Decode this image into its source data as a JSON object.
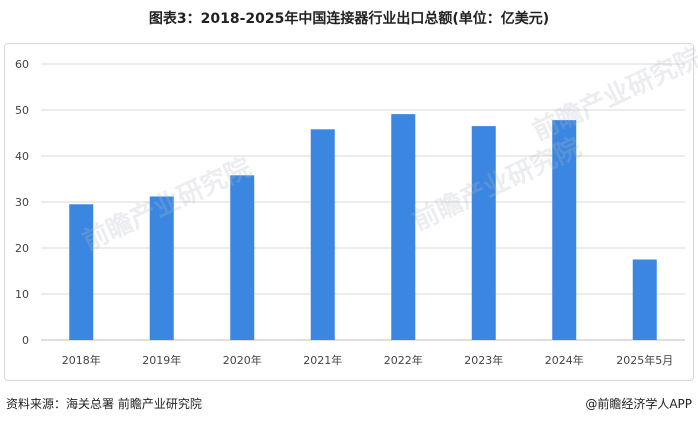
{
  "title": "图表3：2018-2025年中国连接器行业出口总额(单位：亿美元)",
  "footer": {
    "source_label": "资料来源：",
    "source_text": "海关总署 前瞻产业研究院",
    "credit": "@前瞻经济学人APP"
  },
  "watermark": "前瞻产业研究院",
  "colors": {
    "bar": "#3a86e0",
    "grid": "#d9d9d9",
    "axis": "#bfbfbf"
  },
  "chart_data": {
    "type": "bar",
    "categories": [
      "2018年",
      "2019年",
      "2020年",
      "2021年",
      "2022年",
      "2023年",
      "2024年",
      "2025年5月"
    ],
    "values": [
      29.5,
      31.2,
      35.8,
      45.8,
      49.1,
      46.5,
      47.8,
      17.5
    ],
    "ylim": [
      0,
      60
    ],
    "yticks": [
      0,
      10,
      20,
      30,
      40,
      50,
      60
    ],
    "grid": true,
    "legend": "none"
  }
}
